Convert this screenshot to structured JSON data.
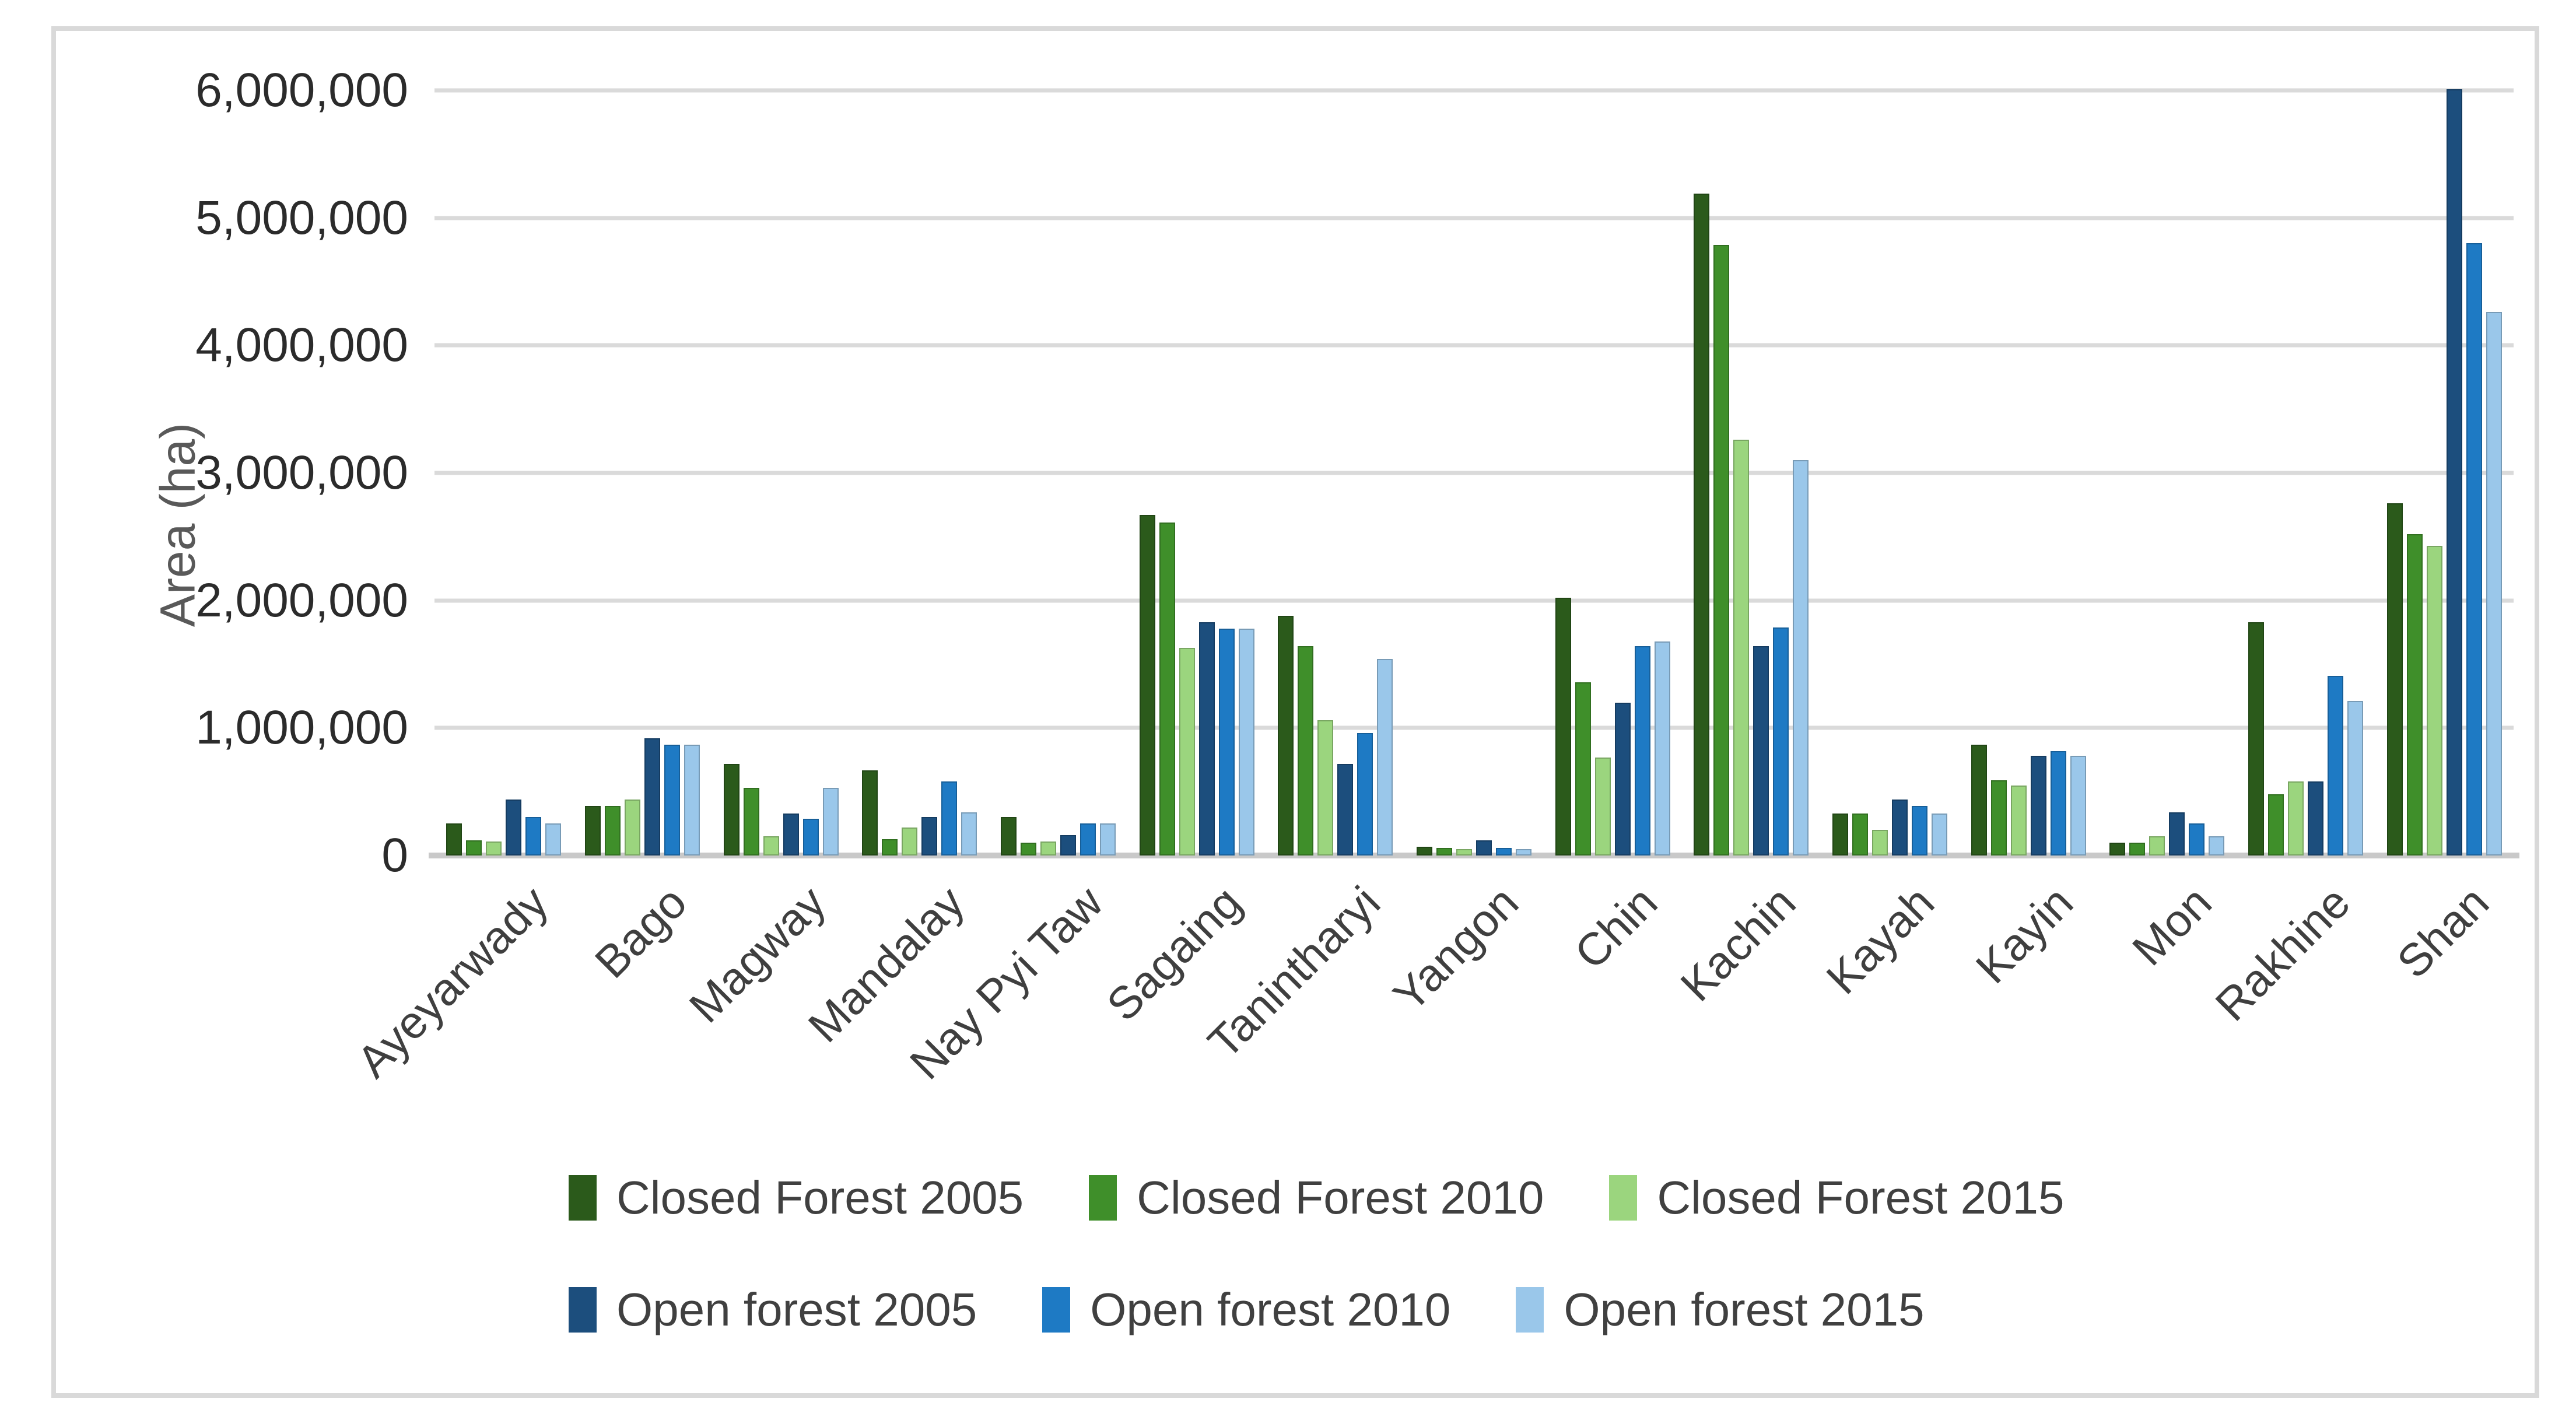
{
  "chart_data": {
    "type": "bar",
    "title": "",
    "xlabel": "",
    "ylabel": "Area (ha)",
    "ylim": [
      0,
      6000000
    ],
    "grid": true,
    "legend_position": "bottom",
    "y_ticks": [
      "6,000,000",
      "5,000,000",
      "4,000,000",
      "3,000,000",
      "2,000,000",
      "1,000,000",
      "0"
    ],
    "categories": [
      "Ayeyarwady",
      "Bago",
      "Magway",
      "Mandalay",
      "Nay Pyi Taw",
      "Sagaing",
      "Tanintharyi",
      "Yangon",
      "Chin",
      "Kachin",
      "Kayah",
      "Kayin",
      "Mon",
      "Rakhine",
      "Shan"
    ],
    "series": [
      {
        "name": "Closed Forest 2005",
        "color": "#2b5a1b",
        "values": [
          250000,
          390000,
          720000,
          670000,
          300000,
          2670000,
          1880000,
          70000,
          2020000,
          5190000,
          330000,
          870000,
          100000,
          1830000,
          2760000
        ]
      },
      {
        "name": "Closed Forest 2010",
        "color": "#3f8f2a",
        "values": [
          120000,
          390000,
          530000,
          130000,
          100000,
          2610000,
          1640000,
          60000,
          1360000,
          4790000,
          330000,
          590000,
          100000,
          480000,
          2520000
        ]
      },
      {
        "name": "Closed Forest 2015",
        "color": "#9bd57e",
        "values": [
          110000,
          440000,
          150000,
          220000,
          110000,
          1630000,
          1060000,
          50000,
          770000,
          3260000,
          200000,
          550000,
          150000,
          580000,
          2430000
        ]
      },
      {
        "name": "Open forest 2005",
        "color": "#1c4e7d",
        "values": [
          440000,
          920000,
          330000,
          300000,
          160000,
          1830000,
          720000,
          120000,
          1200000,
          1640000,
          440000,
          780000,
          340000,
          580000,
          6010000
        ]
      },
      {
        "name": "Open forest 2010",
        "color": "#1e7ac4",
        "values": [
          300000,
          870000,
          290000,
          580000,
          250000,
          1780000,
          960000,
          60000,
          1640000,
          1790000,
          390000,
          820000,
          250000,
          1410000,
          4800000
        ]
      },
      {
        "name": "Open forest 2015",
        "color": "#9ac7ea",
        "values": [
          250000,
          870000,
          530000,
          340000,
          250000,
          1780000,
          1540000,
          50000,
          1680000,
          3100000,
          330000,
          780000,
          150000,
          1210000,
          4260000
        ]
      }
    ]
  },
  "styles": {
    "figure_border": "#d9d9d9",
    "gridline": "#dadada",
    "axis_line": "#c9c9c9",
    "tick_text": "#2b2b2b",
    "axis_title_text": "#595959",
    "legend_text": "#404040"
  }
}
